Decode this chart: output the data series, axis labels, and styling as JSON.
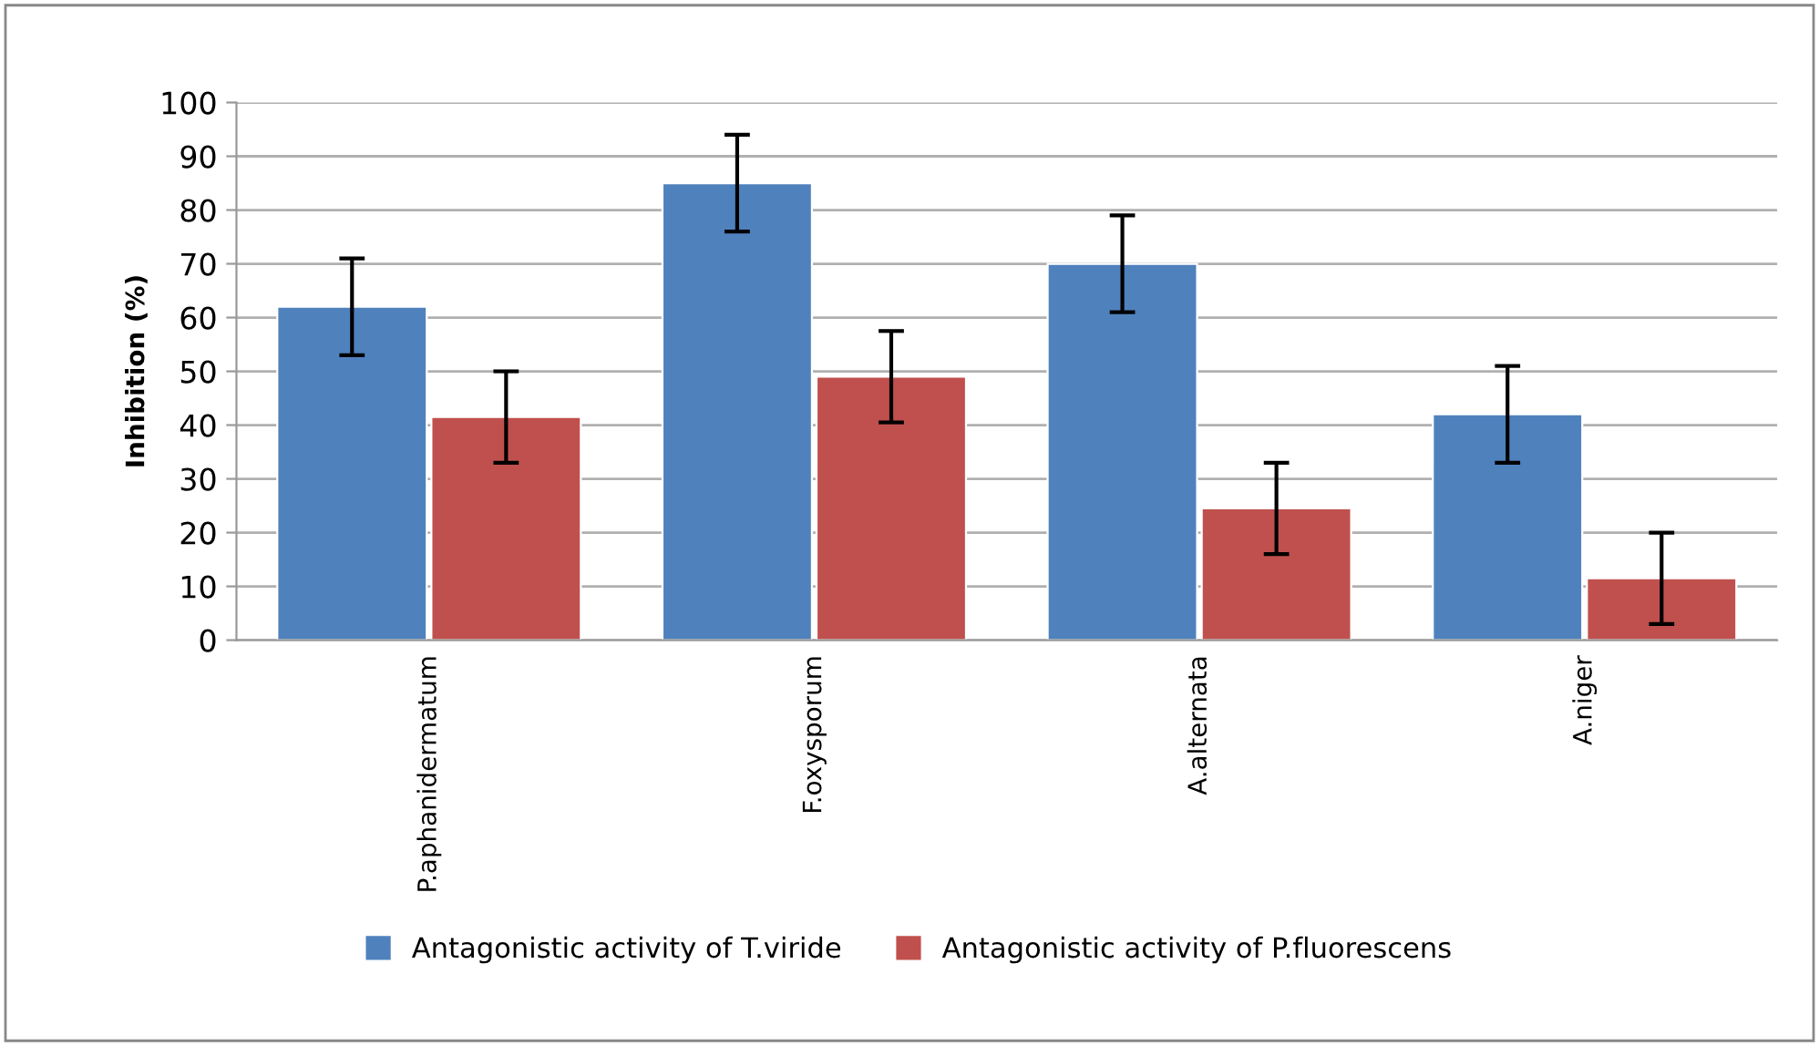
{
  "chart_data": {
    "type": "bar",
    "ylabel": "Inhibition (%)",
    "categories": [
      "P.aphanidermatum",
      "F.oxysporum",
      "A.alternata",
      "A.niger"
    ],
    "series": [
      {
        "name": "Antagonistic activity of T.viride",
        "color": "#4f81bd",
        "values": [
          62,
          85,
          70,
          42
        ],
        "errors": [
          9,
          9,
          9,
          9
        ]
      },
      {
        "name": "Antagonistic activity of P.fluorescens",
        "color": "#c0504d",
        "values": [
          41.5,
          49,
          24.5,
          11.5
        ],
        "errors": [
          8.5,
          8.5,
          8.5,
          8.5
        ]
      }
    ],
    "ylim": [
      0,
      100
    ],
    "yticks": [
      0,
      10,
      20,
      30,
      40,
      50,
      60,
      70,
      80,
      90,
      100
    ],
    "grid": "y",
    "legend": "bottom"
  }
}
